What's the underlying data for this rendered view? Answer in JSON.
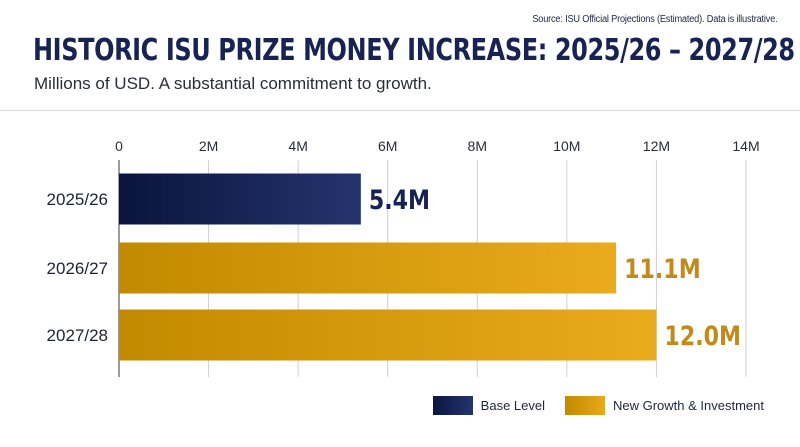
{
  "source_note": "Source: ISU Official Projections (Estimated). Data is illustrative.",
  "chart_data": {
    "type": "bar",
    "orientation": "horizontal",
    "title": "HISTORIC ISU PRIZE MONEY INCREASE: 2025/26 – 2027/28",
    "subtitle": "Millions of USD. A substantial commitment to growth.",
    "categories": [
      "2025/26",
      "2026/27",
      "2027/28"
    ],
    "values": [
      5.4,
      11.1,
      12.0
    ],
    "data_labels": [
      "5.4M",
      "11.1M",
      "12.0M"
    ],
    "bar_series": [
      "Base Level",
      "New Growth & Investment",
      "New Growth & Investment"
    ],
    "xlim": [
      0,
      14
    ],
    "x_ticks": [
      0,
      2,
      4,
      6,
      8,
      10,
      12,
      14
    ],
    "x_tick_labels": [
      "0",
      "2M",
      "4M",
      "6M",
      "8M",
      "10M",
      "12M",
      "14M"
    ],
    "xlabel": "",
    "ylabel": "",
    "grid": true,
    "legend_position": "bottom-right",
    "series": [
      {
        "name": "Base Level",
        "color": "#0c1640"
      },
      {
        "name": "New Growth & Investment",
        "color": "#d9a00d"
      }
    ]
  },
  "legend": {
    "items": [
      {
        "label": "Base Level"
      },
      {
        "label": "New Growth & Investment"
      }
    ]
  },
  "colors": {
    "navy": "#0c1640",
    "gold": "#d9a00d",
    "label_gold": "#c28a1a",
    "grid": "#cfcfcf"
  }
}
